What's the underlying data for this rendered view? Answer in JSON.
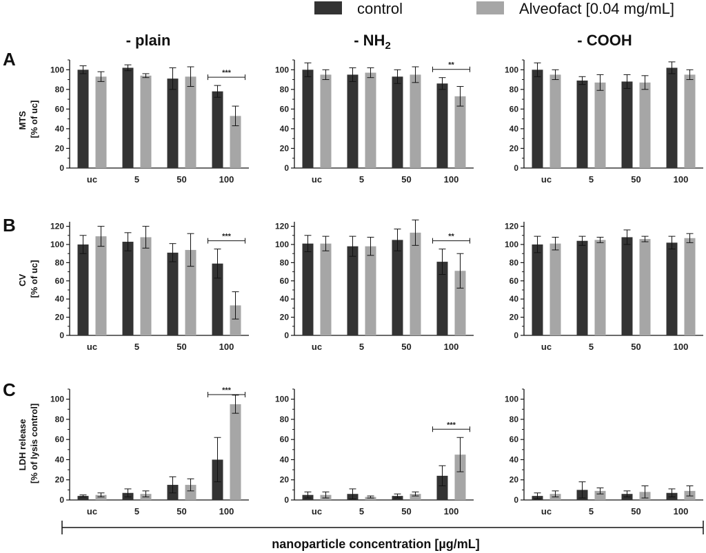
{
  "legend": {
    "control": "control",
    "alveofact": "Alveofact [0.04 mg/mL]"
  },
  "colors": {
    "control": "#333333",
    "alveofact": "#a6a6a6",
    "axis": "#111111"
  },
  "columns": {
    "plain": "- plain",
    "nh2_prefix": "- NH",
    "nh2_sub": "2",
    "cooh": "- COOH"
  },
  "panel_labels": {
    "A": "A",
    "B": "B",
    "C": "C"
  },
  "ylabels": {
    "mts": [
      "MTS",
      "[% of  uc]"
    ],
    "cv": [
      "CV",
      "[% of  uc]"
    ],
    "ldh": [
      "LDH release",
      "[% of lysis control]"
    ]
  },
  "xlabel": "nanoparticle concentration [µg/mL]",
  "chart_data": [
    {
      "id": "A-plain",
      "type": "bar",
      "categories": [
        "uc",
        "5",
        "50",
        "100"
      ],
      "ylim": [
        0,
        110
      ],
      "yticks": [
        0,
        20,
        40,
        60,
        80,
        100
      ],
      "series": [
        {
          "name": "control",
          "values": [
            100,
            102,
            91,
            78
          ],
          "errors": [
            4,
            3,
            11,
            6
          ]
        },
        {
          "name": "Alveofact [0.04 mg/mL]",
          "values": [
            93,
            94,
            93,
            53
          ],
          "errors": [
            5,
            2,
            10,
            10
          ]
        }
      ],
      "sig": {
        "text": "***",
        "category": 3
      }
    },
    {
      "id": "A-NH2",
      "type": "bar",
      "categories": [
        "uc",
        "5",
        "50",
        "100"
      ],
      "ylim": [
        0,
        110
      ],
      "yticks": [
        0,
        20,
        40,
        60,
        80,
        100
      ],
      "series": [
        {
          "name": "control",
          "values": [
            100,
            95,
            93,
            86
          ],
          "errors": [
            7,
            7,
            7,
            6
          ]
        },
        {
          "name": "Alveofact [0.04 mg/mL]",
          "values": [
            95,
            97,
            95,
            73
          ],
          "errors": [
            5,
            5,
            8,
            10
          ]
        }
      ],
      "sig": {
        "text": "**",
        "category": 3
      }
    },
    {
      "id": "A-COOH",
      "type": "bar",
      "categories": [
        "uc",
        "5",
        "50",
        "100"
      ],
      "ylim": [
        0,
        110
      ],
      "yticks": [
        0,
        20,
        40,
        60,
        80,
        100
      ],
      "series": [
        {
          "name": "control",
          "values": [
            100,
            89,
            88,
            102
          ],
          "errors": [
            7,
            4,
            7,
            6
          ]
        },
        {
          "name": "Alveofact [0.04 mg/mL]",
          "values": [
            95,
            87,
            87,
            95
          ],
          "errors": [
            5,
            8,
            7,
            5
          ]
        }
      ],
      "sig": null
    },
    {
      "id": "B-plain",
      "type": "bar",
      "categories": [
        "uc",
        "5",
        "50",
        "100"
      ],
      "ylim": [
        0,
        125
      ],
      "yticks": [
        0,
        20,
        40,
        60,
        80,
        100,
        120
      ],
      "series": [
        {
          "name": "control",
          "values": [
            100,
            103,
            91,
            79
          ],
          "errors": [
            10,
            10,
            10,
            16
          ]
        },
        {
          "name": "Alveofact [0.04 mg/mL]",
          "values": [
            109,
            108,
            94,
            33
          ],
          "errors": [
            11,
            12,
            18,
            15
          ]
        }
      ],
      "sig": {
        "text": "***",
        "category": 3
      }
    },
    {
      "id": "B-NH2",
      "type": "bar",
      "categories": [
        "uc",
        "5",
        "50",
        "100"
      ],
      "ylim": [
        0,
        125
      ],
      "yticks": [
        0,
        20,
        40,
        60,
        80,
        100,
        120
      ],
      "series": [
        {
          "name": "control",
          "values": [
            101,
            98,
            105,
            81
          ],
          "errors": [
            9,
            11,
            12,
            14
          ]
        },
        {
          "name": "Alveofact [0.04 mg/mL]",
          "values": [
            101,
            98,
            113,
            71
          ],
          "errors": [
            8,
            10,
            14,
            19
          ]
        }
      ],
      "sig": {
        "text": "**",
        "category": 3
      }
    },
    {
      "id": "B-COOH",
      "type": "bar",
      "categories": [
        "uc",
        "5",
        "50",
        "100"
      ],
      "ylim": [
        0,
        125
      ],
      "yticks": [
        0,
        20,
        40,
        60,
        80,
        100,
        120
      ],
      "series": [
        {
          "name": "control",
          "values": [
            100,
            104,
            108,
            102
          ],
          "errors": [
            9,
            5,
            8,
            7
          ]
        },
        {
          "name": "Alveofact [0.04 mg/mL]",
          "values": [
            101,
            105,
            106,
            107
          ],
          "errors": [
            7,
            3,
            3,
            5
          ]
        }
      ],
      "sig": null
    },
    {
      "id": "C-plain",
      "type": "bar",
      "categories": [
        "uc",
        "5",
        "50",
        "100"
      ],
      "ylim": [
        0,
        110
      ],
      "yticks": [
        0,
        20,
        40,
        60,
        80,
        100
      ],
      "series": [
        {
          "name": "control",
          "values": [
            4,
            7,
            15,
            40
          ],
          "errors": [
            1,
            4,
            8,
            22
          ]
        },
        {
          "name": "Alveofact [0.04 mg/mL]",
          "values": [
            5,
            6,
            15,
            95
          ],
          "errors": [
            2,
            3,
            6,
            9
          ]
        }
      ],
      "sig": {
        "text": "***",
        "category": 3
      }
    },
    {
      "id": "C-NH2",
      "type": "bar",
      "categories": [
        "uc",
        "5",
        "50",
        "100"
      ],
      "ylim": [
        0,
        110
      ],
      "yticks": [
        0,
        20,
        40,
        60,
        80,
        100
      ],
      "series": [
        {
          "name": "control",
          "values": [
            5,
            6,
            4,
            24
          ],
          "errors": [
            3,
            5,
            2,
            10
          ]
        },
        {
          "name": "Alveofact [0.04 mg/mL]",
          "values": [
            5,
            3,
            6,
            45
          ],
          "errors": [
            3,
            1,
            2,
            17
          ]
        }
      ],
      "sig": {
        "text": "***",
        "category": 3
      }
    },
    {
      "id": "C-COOH",
      "type": "bar",
      "categories": [
        "uc",
        "5",
        "50",
        "100"
      ],
      "ylim": [
        0,
        110
      ],
      "yticks": [
        0,
        20,
        40,
        60,
        80,
        100
      ],
      "series": [
        {
          "name": "control",
          "values": [
            4,
            10,
            6,
            7
          ],
          "errors": [
            3,
            8,
            3,
            4
          ]
        },
        {
          "name": "Alveofact [0.04 mg/mL]",
          "values": [
            6,
            9,
            8,
            9
          ],
          "errors": [
            3,
            3,
            6,
            5
          ]
        }
      ],
      "sig": null
    }
  ]
}
